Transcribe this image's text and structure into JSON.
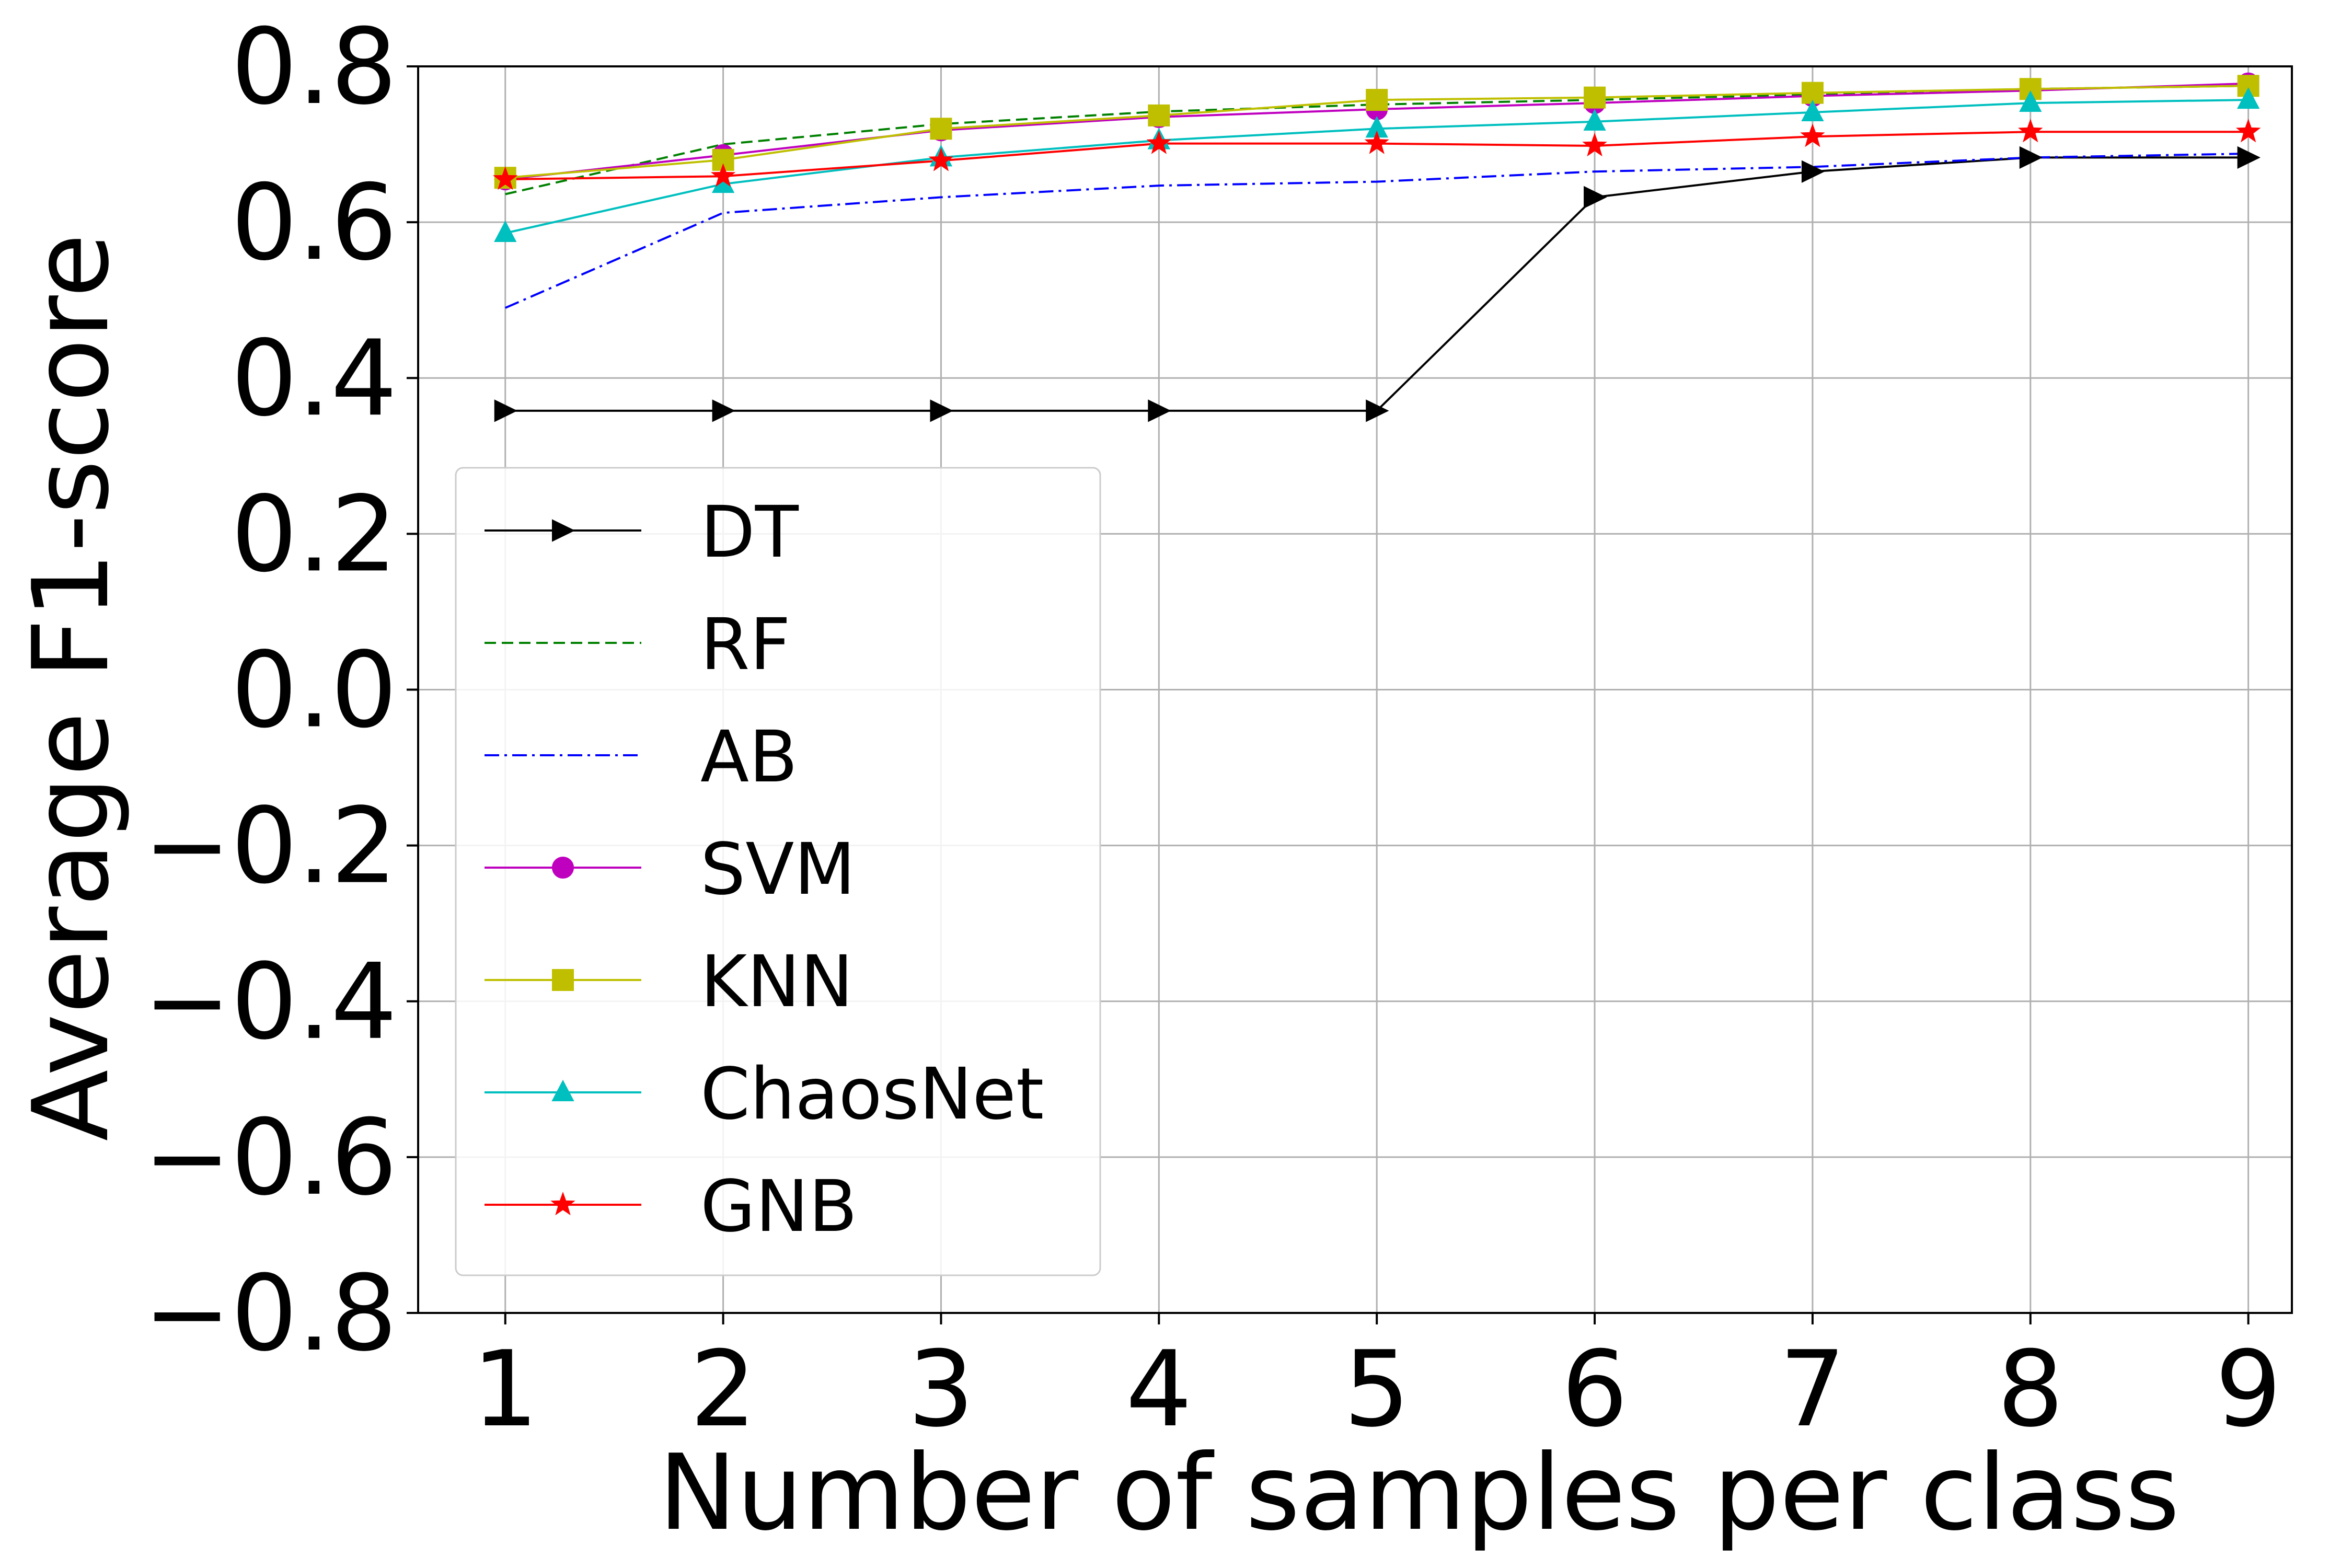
{
  "chart_data": {
    "type": "line",
    "title": "",
    "xlabel": "Number of samples per class",
    "ylabel": "Average F1-score",
    "x": [
      1,
      2,
      3,
      4,
      5,
      6,
      7,
      8,
      9
    ],
    "xlim": [
      0.6,
      9.2
    ],
    "ylim": [
      -0.8,
      0.8
    ],
    "x_ticks": [
      "1",
      "2",
      "3",
      "4",
      "5",
      "6",
      "7",
      "8",
      "9"
    ],
    "y_ticks": [
      {
        "value": 0.8,
        "label": "0.8"
      },
      {
        "value": 0.6,
        "label": "0.6"
      },
      {
        "value": 0.4,
        "label": "0.4"
      },
      {
        "value": 0.2,
        "label": "0.2"
      },
      {
        "value": 0.0,
        "label": "0.0"
      },
      {
        "value": -0.2,
        "label": "−0.2"
      },
      {
        "value": -0.4,
        "label": "−0.4"
      },
      {
        "value": -0.6,
        "label": "−0.6"
      },
      {
        "value": -0.8,
        "label": "−0.8"
      }
    ],
    "grid": true,
    "legend_position": "lower-left",
    "series": [
      {
        "name": "DT",
        "color": "#000000",
        "dash": "solid",
        "marker": "triangle-right",
        "values": [
          0.358,
          0.358,
          0.358,
          0.358,
          0.358,
          0.632,
          0.665,
          0.683,
          0.683
        ]
      },
      {
        "name": "RF",
        "color": "#008000",
        "dash": "dashed",
        "marker": "none",
        "values": [
          0.636,
          0.7,
          0.726,
          0.742,
          0.751,
          0.757,
          0.764,
          0.771,
          0.775
        ]
      },
      {
        "name": "AB",
        "color": "#0000ff",
        "dash": "dashdot",
        "marker": "none",
        "values": [
          0.49,
          0.612,
          0.632,
          0.647,
          0.652,
          0.665,
          0.671,
          0.683,
          0.688
        ]
      },
      {
        "name": "SVM",
        "color": "#bf00bf",
        "dash": "solid",
        "marker": "circle",
        "values": [
          0.655,
          0.686,
          0.718,
          0.735,
          0.745,
          0.753,
          0.762,
          0.769,
          0.778
        ]
      },
      {
        "name": "KNN",
        "color": "#bfbf00",
        "dash": "solid",
        "marker": "square",
        "values": [
          0.657,
          0.68,
          0.72,
          0.737,
          0.757,
          0.76,
          0.766,
          0.771,
          0.775
        ]
      },
      {
        "name": "ChaosNet",
        "color": "#00bfbf",
        "dash": "solid",
        "marker": "triangle-up",
        "values": [
          0.586,
          0.649,
          0.683,
          0.705,
          0.72,
          0.729,
          0.741,
          0.753,
          0.757
        ]
      },
      {
        "name": "GNB",
        "color": "#ff0000",
        "dash": "solid",
        "marker": "star",
        "values": [
          0.655,
          0.659,
          0.679,
          0.701,
          0.701,
          0.698,
          0.71,
          0.716,
          0.716
        ]
      }
    ]
  }
}
